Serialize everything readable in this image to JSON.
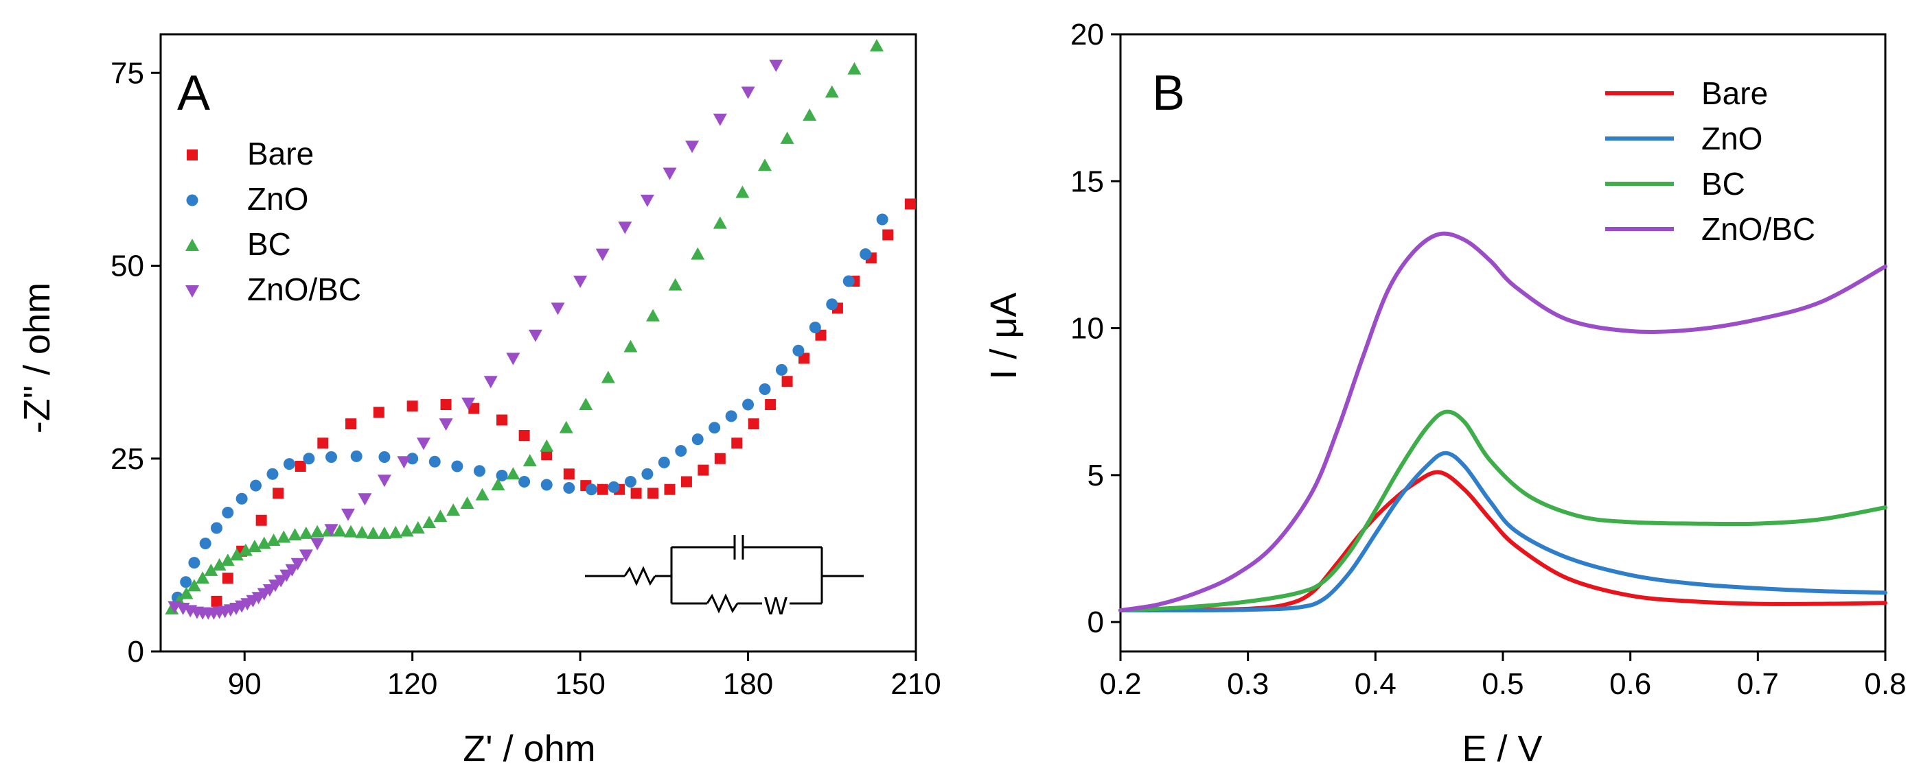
{
  "colors": {
    "bare": "#e8141b",
    "zno": "#2e7ec9",
    "bc": "#3dae49",
    "znobc": "#9b4cc7",
    "axis": "#000000"
  },
  "chart_data": [
    {
      "panel": "A",
      "type": "scatter",
      "xlabel": "Z' / ohm",
      "ylabel": "-Z\" / ohm",
      "xlim": [
        75,
        210
      ],
      "ylim": [
        0,
        80
      ],
      "xticks": [
        90,
        120,
        150,
        180,
        210
      ],
      "yticks": [
        0,
        25,
        50,
        75
      ],
      "legend_position": "top-left",
      "series": [
        {
          "name": "Bare",
          "color_key": "bare",
          "marker": "square",
          "x": [
            85,
            87,
            89.5,
            93,
            96,
            100,
            104,
            109,
            114,
            120,
            126,
            131,
            136,
            140,
            144,
            148,
            151,
            154,
            157,
            160,
            163,
            166,
            169,
            172,
            175,
            178,
            181,
            184,
            187,
            190,
            193,
            196,
            199,
            202,
            205,
            209
          ],
          "y": [
            6.5,
            9.5,
            13,
            17,
            20.5,
            24,
            27,
            29.5,
            31,
            31.8,
            32,
            31.5,
            30,
            28,
            25.5,
            23,
            21.5,
            21,
            21,
            20.5,
            20.5,
            21,
            22,
            23.5,
            25,
            27,
            29.5,
            32,
            35,
            38,
            41,
            44.5,
            48,
            51,
            54,
            58
          ]
        },
        {
          "name": "ZnO",
          "color_key": "zno",
          "marker": "circle",
          "x": [
            78,
            79.5,
            81,
            83,
            85,
            87,
            89.5,
            92,
            95,
            98,
            101.5,
            105.5,
            110,
            115,
            120,
            124,
            128,
            132,
            136,
            140,
            144,
            148,
            152,
            156,
            159,
            162,
            165,
            168,
            171,
            174,
            177,
            180,
            183,
            186,
            189,
            192,
            195,
            198,
            201,
            204
          ],
          "y": [
            7,
            9,
            11.5,
            14,
            16,
            18,
            19.8,
            21.5,
            23,
            24.3,
            25,
            25.2,
            25.3,
            25.2,
            25,
            24.6,
            24,
            23.4,
            22.8,
            22,
            21.6,
            21.2,
            21,
            21.3,
            22,
            23,
            24.5,
            26,
            27.5,
            29,
            30.5,
            32,
            34,
            36.5,
            39,
            42,
            45,
            48,
            51.5,
            56
          ]
        },
        {
          "name": "BC",
          "color_key": "bc",
          "marker": "triangle-up",
          "x": [
            77,
            78.3,
            79.6,
            81,
            82.5,
            84,
            85.5,
            87,
            88.6,
            90.2,
            91.8,
            93.5,
            95.2,
            97,
            99,
            101,
            103,
            105,
            107,
            109,
            111,
            113,
            115,
            117,
            119,
            121,
            123,
            125,
            127.3,
            129.8,
            132.5,
            135.3,
            138,
            141,
            144,
            147.5,
            151,
            155,
            159,
            163,
            167,
            171,
            175,
            179,
            183,
            187,
            191,
            195,
            199,
            203
          ],
          "y": [
            5.5,
            6.5,
            7.5,
            8.5,
            9.5,
            10.5,
            11.2,
            11.8,
            12.5,
            13.1,
            13.6,
            14,
            14.4,
            14.8,
            15.1,
            15.3,
            15.5,
            15.6,
            15.6,
            15.5,
            15.4,
            15.3,
            15.3,
            15.4,
            15.6,
            16,
            16.7,
            17.5,
            18.3,
            19.2,
            20.3,
            21.6,
            23,
            24.7,
            26.6,
            29,
            32,
            35.5,
            39.5,
            43.5,
            47.5,
            51.5,
            55.5,
            59.5,
            63,
            66.5,
            69.5,
            72.5,
            75.5,
            78.5
          ]
        },
        {
          "name": "ZnO/BC",
          "color_key": "znobc",
          "marker": "triangle-down",
          "x": [
            77.5,
            79,
            80.3,
            81.5,
            82.5,
            83.5,
            84.5,
            85.5,
            86.5,
            87.5,
            88.5,
            89.5,
            90.5,
            91.5,
            92.5,
            93.5,
            94.5,
            95.5,
            96.5,
            97.5,
            98.5,
            99.5,
            101,
            103,
            105.5,
            108.5,
            111.5,
            115,
            118.5,
            122,
            126,
            130,
            134,
            138,
            142,
            146,
            150,
            154,
            158,
            162,
            166,
            170,
            175,
            180,
            185
          ],
          "y": [
            5.8,
            5.6,
            5.3,
            5.1,
            5,
            5,
            5,
            5.1,
            5.2,
            5.4,
            5.6,
            5.9,
            6.2,
            6.6,
            7,
            7.5,
            8,
            8.6,
            9.2,
            9.9,
            10.6,
            11.4,
            12.5,
            14,
            15.8,
            17.8,
            19.8,
            22.2,
            24.6,
            27,
            29.5,
            32.2,
            35,
            38,
            41,
            44.5,
            48,
            51.5,
            55,
            58.5,
            62,
            65.5,
            69,
            72.5,
            76
          ]
        }
      ],
      "inset": "equivalent-circuit: R in series with (C parallel R-W)",
      "inset_w_label": "W"
    },
    {
      "panel": "B",
      "type": "line",
      "xlabel": "E / V",
      "ylabel": "I / μA",
      "xlim": [
        0.2,
        0.8
      ],
      "ylim": [
        -1,
        20
      ],
      "xticks": [
        0.2,
        0.3,
        0.4,
        0.5,
        0.6,
        0.7,
        0.8
      ],
      "yticks": [
        0,
        5,
        10,
        15,
        20
      ],
      "legend_position": "top-right",
      "series": [
        {
          "name": "Bare",
          "color_key": "bare",
          "x": [
            0.2,
            0.25,
            0.3,
            0.33,
            0.35,
            0.37,
            0.39,
            0.41,
            0.43,
            0.45,
            0.47,
            0.49,
            0.51,
            0.55,
            0.6,
            0.65,
            0.7,
            0.75,
            0.8
          ],
          "y": [
            0.4,
            0.42,
            0.45,
            0.6,
            1.0,
            2.0,
            3.1,
            4.0,
            4.7,
            5.1,
            4.5,
            3.5,
            2.6,
            1.5,
            0.9,
            0.7,
            0.62,
            0.62,
            0.65
          ]
        },
        {
          "name": "ZnO",
          "color_key": "zno",
          "x": [
            0.2,
            0.25,
            0.3,
            0.34,
            0.36,
            0.38,
            0.4,
            0.42,
            0.44,
            0.455,
            0.47,
            0.49,
            0.51,
            0.55,
            0.6,
            0.65,
            0.7,
            0.75,
            0.8
          ],
          "y": [
            0.4,
            0.4,
            0.42,
            0.5,
            0.8,
            1.7,
            3.0,
            4.3,
            5.3,
            5.75,
            5.3,
            4.1,
            3.1,
            2.2,
            1.6,
            1.3,
            1.15,
            1.05,
            1.0
          ]
        },
        {
          "name": "BC",
          "color_key": "bc",
          "x": [
            0.2,
            0.25,
            0.3,
            0.34,
            0.36,
            0.38,
            0.4,
            0.42,
            0.44,
            0.455,
            0.47,
            0.49,
            0.52,
            0.56,
            0.6,
            0.65,
            0.7,
            0.75,
            0.8
          ],
          "y": [
            0.4,
            0.5,
            0.7,
            1.0,
            1.4,
            2.4,
            3.8,
            5.3,
            6.6,
            7.15,
            6.8,
            5.5,
            4.3,
            3.6,
            3.4,
            3.35,
            3.35,
            3.5,
            3.9
          ]
        },
        {
          "name": "ZnO/BC",
          "color_key": "znobc",
          "x": [
            0.2,
            0.23,
            0.26,
            0.29,
            0.32,
            0.35,
            0.37,
            0.39,
            0.41,
            0.43,
            0.45,
            0.47,
            0.49,
            0.51,
            0.55,
            0.6,
            0.65,
            0.7,
            0.75,
            0.8
          ],
          "y": [
            0.4,
            0.6,
            1.0,
            1.6,
            2.6,
            4.4,
            6.5,
            9.0,
            11.3,
            12.6,
            13.2,
            13.0,
            12.3,
            11.4,
            10.3,
            9.9,
            9.95,
            10.3,
            10.9,
            12.1
          ]
        }
      ]
    }
  ]
}
